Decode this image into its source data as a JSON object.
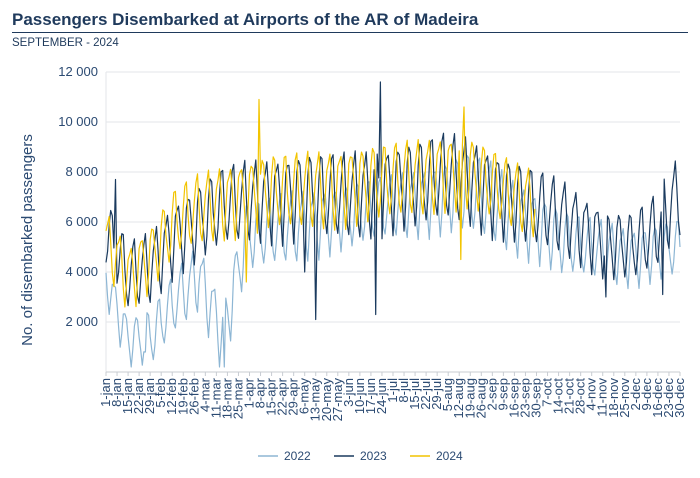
{
  "header": {
    "title": "Passengers Disembarked at Airports of the AR of Madeira",
    "subtitle": "SEPTEMBER - 2024"
  },
  "chart_data": {
    "type": "line",
    "title": "Passengers Disembarked at Airports of the AR of Madeira",
    "subtitle": "SEPTEMBER - 2024",
    "xlabel": "",
    "ylabel": "No. of disembarked passengers",
    "ylim": [
      0,
      12000
    ],
    "yticks": [
      2000,
      4000,
      6000,
      8000,
      10000,
      12000
    ],
    "ytick_labels": [
      "2 000",
      "4 000",
      "6 000",
      "8 000",
      "10 000",
      "12 000"
    ],
    "xticks": [
      "1-jan",
      "8-jan",
      "15-jan",
      "22-jan",
      "29-jan",
      "5-feb",
      "12-feb",
      "19-feb",
      "26-feb",
      "4-mar",
      "11-mar",
      "18-mar",
      "25-mar",
      "1-apr",
      "8-apr",
      "15-apr",
      "22-apr",
      "29-apr",
      "6-may",
      "13-may",
      "20-may",
      "27-may",
      "3-jun",
      "10-jun",
      "17-jun",
      "24-jun",
      "1-jul",
      "8-jul",
      "15-jul",
      "22-jul",
      "29-jul",
      "5-aug",
      "12-aug",
      "19-aug",
      "26-aug",
      "2-sep",
      "9-sep",
      "16-sep",
      "23-sep",
      "30-sep",
      "7-oct",
      "14-oct",
      "21-oct",
      "28-oct",
      "4-nov",
      "11-nov",
      "18-nov",
      "25-nov",
      "2-dec",
      "9-dec",
      "16-dec",
      "23-dec",
      "30-dec"
    ],
    "grid": true,
    "legend_position": "bottom",
    "series": [
      {
        "name": "2022",
        "color": "#8db6d4",
        "days": 365,
        "anchors": [
          [
            1,
            3700
          ],
          [
            15,
            1200
          ],
          [
            30,
            1400
          ],
          [
            45,
            2800
          ],
          [
            60,
            3800
          ],
          [
            75,
            1400
          ],
          [
            90,
            5400
          ],
          [
            105,
            5600
          ],
          [
            120,
            5800
          ],
          [
            150,
            6200
          ],
          [
            180,
            6600
          ],
          [
            200,
            6800
          ],
          [
            215,
            7000
          ],
          [
            230,
            7200
          ],
          [
            245,
            6800
          ],
          [
            260,
            6200
          ],
          [
            275,
            5800
          ],
          [
            290,
            5200
          ],
          [
            305,
            5000
          ],
          [
            320,
            4800
          ],
          [
            335,
            4600
          ],
          [
            350,
            4800
          ],
          [
            365,
            5000
          ]
        ],
        "amp_anchors": [
          [
            1,
            900
          ],
          [
            60,
            1300
          ],
          [
            120,
            1400
          ],
          [
            180,
            1200
          ],
          [
            240,
            1600
          ],
          [
            300,
            1200
          ],
          [
            365,
            1100
          ]
        ],
        "dips": [
          [
            76,
            200
          ],
          [
            18,
            900
          ],
          [
            26,
            800
          ]
        ]
      },
      {
        "name": "2023",
        "color": "#1a3a5e",
        "days": 365,
        "anchors": [
          [
            1,
            5600
          ],
          [
            15,
            3800
          ],
          [
            30,
            4200
          ],
          [
            45,
            5400
          ],
          [
            60,
            6000
          ],
          [
            75,
            6600
          ],
          [
            90,
            6800
          ],
          [
            105,
            6900
          ],
          [
            120,
            7000
          ],
          [
            150,
            7000
          ],
          [
            170,
            7200
          ],
          [
            185,
            7400
          ],
          [
            200,
            7500
          ],
          [
            215,
            7800
          ],
          [
            230,
            7700
          ],
          [
            245,
            7200
          ],
          [
            260,
            6800
          ],
          [
            275,
            6500
          ],
          [
            290,
            6200
          ],
          [
            305,
            5600
          ],
          [
            320,
            5100
          ],
          [
            335,
            5000
          ],
          [
            350,
            5600
          ],
          [
            365,
            7200
          ]
        ],
        "amp_anchors": [
          [
            1,
            1300
          ],
          [
            60,
            1500
          ],
          [
            120,
            1700
          ],
          [
            180,
            1700
          ],
          [
            240,
            1700
          ],
          [
            300,
            1400
          ],
          [
            330,
            1300
          ],
          [
            365,
            1600
          ]
        ],
        "dips": [
          [
            134,
            2100
          ],
          [
            172,
            2300
          ],
          [
            127,
            4000
          ],
          [
            318,
            3000
          ],
          [
            354,
            3100
          ]
        ],
        "peaks": [
          [
            175,
            11600
          ],
          [
            7,
            7700
          ]
        ]
      },
      {
        "name": "2024",
        "color": "#f2c400",
        "days": 273,
        "anchors": [
          [
            1,
            5200
          ],
          [
            15,
            3800
          ],
          [
            30,
            4600
          ],
          [
            45,
            6000
          ],
          [
            60,
            6500
          ],
          [
            75,
            6800
          ],
          [
            90,
            7000
          ],
          [
            105,
            7200
          ],
          [
            120,
            7200
          ],
          [
            150,
            7400
          ],
          [
            180,
            7600
          ],
          [
            200,
            7800
          ],
          [
            215,
            8000
          ],
          [
            230,
            8000
          ],
          [
            245,
            7500
          ],
          [
            260,
            7000
          ],
          [
            273,
            6800
          ]
        ],
        "amp_anchors": [
          [
            1,
            1200
          ],
          [
            60,
            1400
          ],
          [
            120,
            1500
          ],
          [
            180,
            1500
          ],
          [
            240,
            1400
          ],
          [
            273,
            1300
          ]
        ],
        "dips": [
          [
            226,
            4500
          ],
          [
            90,
            3600
          ]
        ],
        "peaks": [
          [
            98,
            10900
          ],
          [
            228,
            10600
          ]
        ]
      }
    ]
  }
}
